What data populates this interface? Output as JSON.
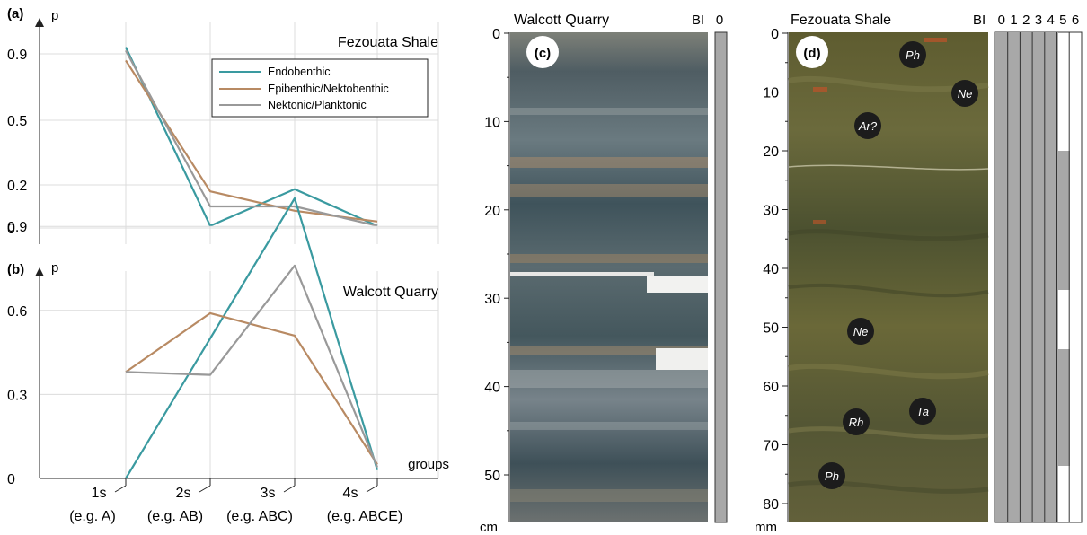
{
  "panel_a": {
    "label": "(a)",
    "axis_label": "p",
    "title": "Fezouata Shale"
  },
  "panel_b": {
    "label": "(b)",
    "axis_label": "p",
    "title": "Walcott Quarry",
    "x_axis_label": "groups"
  },
  "legend": {
    "items": [
      {
        "name": "Endobenthic",
        "color": "#3a9aa0"
      },
      {
        "name": "Epibenthic/Nektobenthic",
        "color": "#b88a63"
      },
      {
        "name": "Nektonic/Planktonic",
        "color": "#999999"
      }
    ]
  },
  "x_groups": [
    {
      "top": "1s",
      "bottom": "(e.g. A)"
    },
    {
      "top": "2s",
      "bottom": "(e.g. AB)"
    },
    {
      "top": "3s",
      "bottom": "(e.g. ABC)"
    },
    {
      "top": "4s",
      "bottom": "(e.g. ABCE)"
    }
  ],
  "chart_data": [
    {
      "type": "line",
      "title": "Fezouata Shale",
      "ylabel": "p",
      "categories": [
        "1s",
        "2s",
        "3s",
        "4s"
      ],
      "yticks": [
        "0",
        "0.2",
        "0.5",
        "0.9"
      ],
      "series": [
        {
          "name": "Endobenthic",
          "values": [
            0.94,
            0.01,
            0.18,
            0.01
          ]
        },
        {
          "name": "Epibenthic/Nektobenthic",
          "values": [
            0.86,
            0.17,
            0.08,
            0.03
          ]
        },
        {
          "name": "Nektonic/Planktonic",
          "values": [
            0.92,
            0.1,
            0.1,
            0.01
          ]
        }
      ]
    },
    {
      "type": "line",
      "title": "Walcott Quarry",
      "ylabel": "p",
      "xlabel": "groups",
      "categories": [
        "1s",
        "2s",
        "3s",
        "4s"
      ],
      "yticks": [
        "0",
        "0.3",
        "0.6",
        "0.9"
      ],
      "ylim": [
        0,
        1.02
      ],
      "series": [
        {
          "name": "Endobenthic",
          "values": [
            0.0,
            0.5,
            1.0,
            0.03
          ]
        },
        {
          "name": "Epibenthic/Nektobenthic",
          "values": [
            0.38,
            0.59,
            0.51,
            0.05
          ]
        },
        {
          "name": "Nektonic/Planktonic",
          "values": [
            0.38,
            0.37,
            0.76,
            0.04
          ]
        }
      ]
    }
  ],
  "panel_c": {
    "label": "(c)",
    "title": "Walcott Quarry",
    "bi_label": "BI",
    "bi_columns": [
      "0"
    ],
    "ticks": [
      "0",
      "10",
      "20",
      "30",
      "40",
      "50"
    ],
    "unit": "cm"
  },
  "panel_d": {
    "label": "(d)",
    "title": "Fezouata Shale",
    "bi_label": "BI",
    "bi_columns": [
      "0",
      "1",
      "2",
      "3",
      "4",
      "5",
      "6"
    ],
    "ticks": [
      "0",
      "10",
      "20",
      "30",
      "40",
      "50",
      "60",
      "70",
      "80"
    ],
    "unit": "mm",
    "markers": [
      "Ph",
      "Ne",
      "Ar?",
      "Ne",
      "Ta",
      "Rh",
      "Ph"
    ]
  },
  "colors": {
    "core_c": "#4a5a5e",
    "core_d": "#5b5a34",
    "bi_fill": "#a8a8a8"
  }
}
